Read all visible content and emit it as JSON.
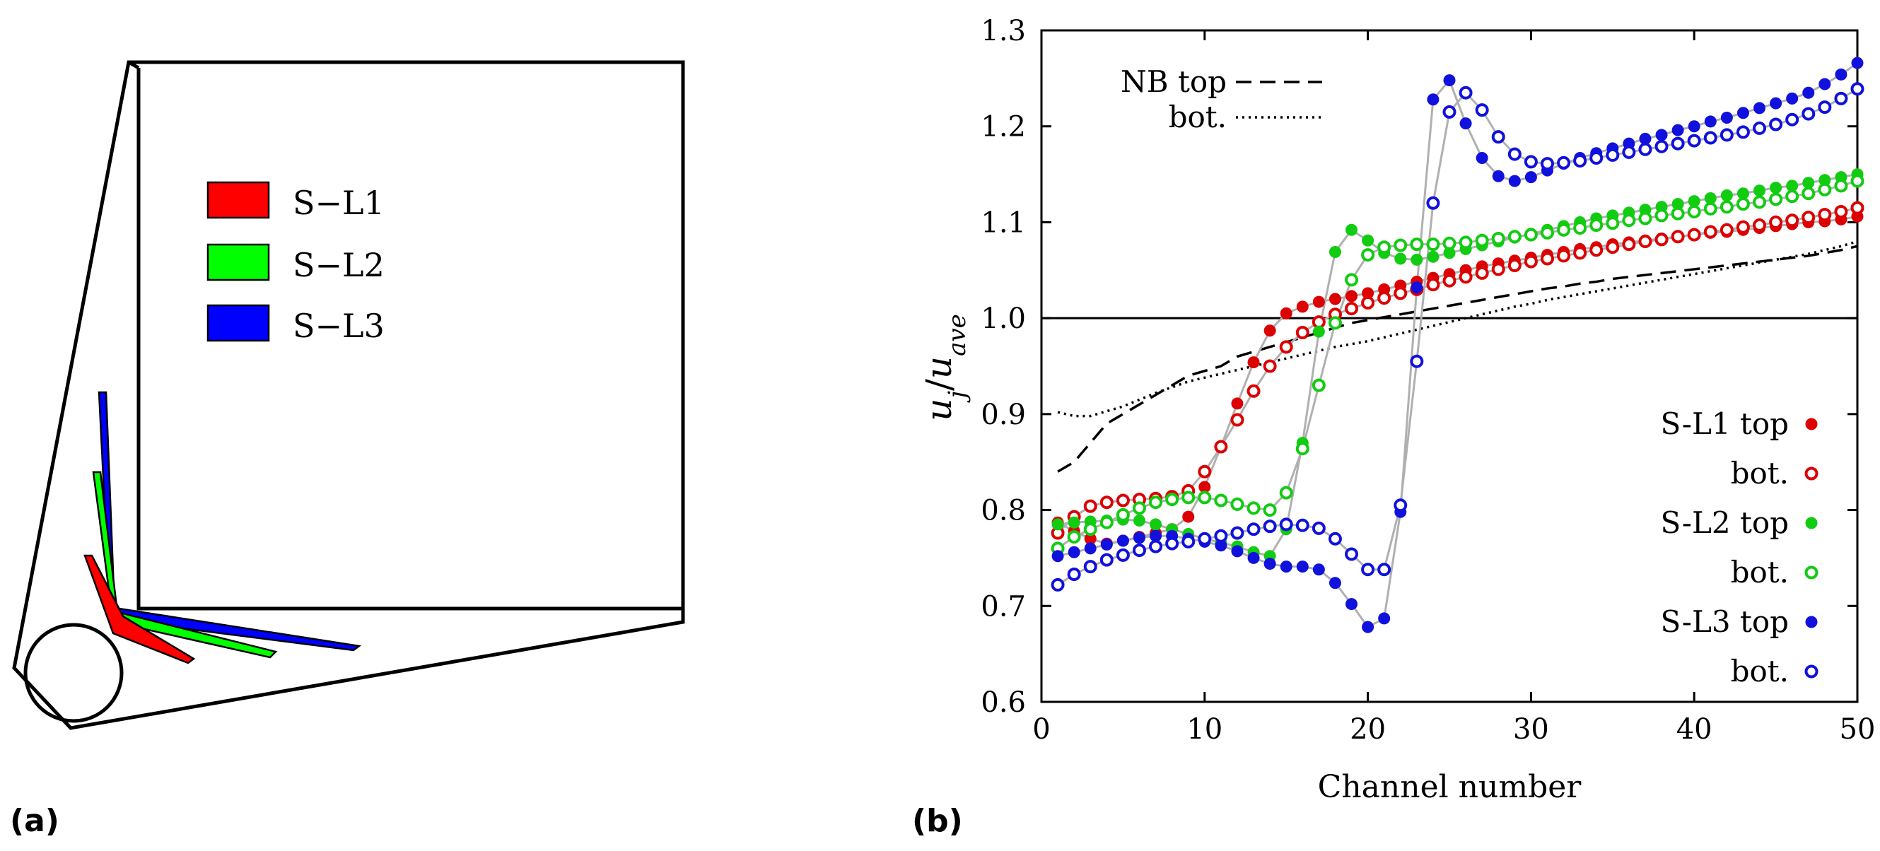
{
  "panel_a": {
    "label": "(a)",
    "legend": [
      {
        "name": "S−L1",
        "color": "#ff0000"
      },
      {
        "name": "S−L2",
        "color": "#00ff00"
      },
      {
        "name": "S−L3",
        "color": "#0000ff"
      }
    ]
  },
  "panel_b": {
    "label": "(b)"
  },
  "chart_data": {
    "type": "scatter",
    "xlabel": "Channel number",
    "ylabel": "u_j/u_ave",
    "ylabel_main": "u",
    "ylabel_sub": "j",
    "ylabel_slash": "/",
    "ylabel_main2": "u",
    "ylabel_sub2": "ave",
    "xlim": [
      0,
      50
    ],
    "ylim": [
      0.6,
      1.3
    ],
    "xticks": [
      0,
      10,
      20,
      30,
      40,
      50
    ],
    "xtick_labels": [
      "0",
      "10",
      "20",
      "30",
      "40",
      "50"
    ],
    "yticks": [
      0.6,
      0.7,
      0.8,
      0.9,
      1.0,
      1.1,
      1.2,
      1.3
    ],
    "ytick_labels": [
      "0.6",
      "0.7",
      "0.8",
      "0.9",
      "1.0",
      "1.1",
      "1.2",
      "1.3"
    ],
    "reference_line": 1.0,
    "legend_top_left": [
      {
        "label": "NB top",
        "style": "dashed"
      },
      {
        "label": "bot.",
        "style": "dotted"
      }
    ],
    "legend_bottom_right": [
      {
        "label": "S-L1 top",
        "color": "#dd0000",
        "filled": true
      },
      {
        "label": "bot.",
        "color": "#dd0000",
        "filled": false
      },
      {
        "label": "S-L2 top",
        "color": "#11cc11",
        "filled": true
      },
      {
        "label": "bot.",
        "color": "#11cc11",
        "filled": false
      },
      {
        "label": "S-L3 top",
        "color": "#1111dd",
        "filled": true
      },
      {
        "label": "bot.",
        "color": "#1111dd",
        "filled": false
      }
    ],
    "series": [
      {
        "name": "NB top",
        "style": "dashed",
        "x": [
          1,
          2,
          3,
          4,
          5,
          6,
          7,
          8,
          9,
          10,
          11,
          12,
          13,
          14,
          15,
          16,
          17,
          18,
          19,
          20,
          21,
          22,
          23,
          24,
          25,
          26,
          27,
          28,
          29,
          30,
          31,
          32,
          33,
          34,
          35,
          36,
          37,
          38,
          39,
          40,
          41,
          42,
          43,
          44,
          45,
          46,
          47,
          48,
          49,
          50
        ],
        "values": [
          0.84,
          0.85,
          0.87,
          0.89,
          0.9,
          0.91,
          0.92,
          0.93,
          0.94,
          0.945,
          0.95,
          0.96,
          0.965,
          0.97,
          0.975,
          0.98,
          0.985,
          0.99,
          0.995,
          0.998,
          1.001,
          1.004,
          1.007,
          1.01,
          1.013,
          1.016,
          1.019,
          1.022,
          1.025,
          1.028,
          1.031,
          1.033,
          1.036,
          1.038,
          1.041,
          1.043,
          1.045,
          1.047,
          1.049,
          1.051,
          1.053,
          1.055,
          1.057,
          1.059,
          1.061,
          1.063,
          1.065,
          1.068,
          1.071,
          1.075
        ]
      },
      {
        "name": "NB bot.",
        "style": "dotted",
        "x": [
          1,
          2,
          3,
          4,
          5,
          6,
          7,
          8,
          9,
          10,
          11,
          12,
          13,
          14,
          15,
          16,
          17,
          18,
          19,
          20,
          21,
          22,
          23,
          24,
          25,
          26,
          27,
          28,
          29,
          30,
          31,
          32,
          33,
          34,
          35,
          36,
          37,
          38,
          39,
          40,
          41,
          42,
          43,
          44,
          45,
          46,
          47,
          48,
          49,
          50
        ],
        "values": [
          0.902,
          0.898,
          0.898,
          0.903,
          0.908,
          0.915,
          0.922,
          0.928,
          0.934,
          0.938,
          0.942,
          0.946,
          0.95,
          0.954,
          0.958,
          0.962,
          0.966,
          0.97,
          0.973,
          0.976,
          0.98,
          0.984,
          0.988,
          0.992,
          0.996,
          1.0,
          1.004,
          1.008,
          1.012,
          1.015,
          1.019,
          1.022,
          1.025,
          1.028,
          1.031,
          1.034,
          1.037,
          1.04,
          1.043,
          1.046,
          1.049,
          1.052,
          1.055,
          1.058,
          1.061,
          1.064,
          1.067,
          1.071,
          1.075,
          1.08
        ]
      },
      {
        "name": "S-L1 top",
        "color": "#dd0000",
        "filled": true,
        "x": [
          1,
          2,
          3,
          4,
          5,
          6,
          7,
          8,
          9,
          10,
          11,
          12,
          13,
          14,
          15,
          16,
          17,
          18,
          19,
          20,
          21,
          22,
          23,
          24,
          25,
          26,
          27,
          28,
          29,
          30,
          31,
          32,
          33,
          34,
          35,
          36,
          37,
          38,
          39,
          40,
          41,
          42,
          43,
          44,
          45,
          46,
          47,
          48,
          49,
          50
        ],
        "values": [
          0.787,
          0.778,
          0.77,
          0.765,
          0.768,
          0.772,
          0.776,
          0.78,
          0.793,
          0.824,
          0.866,
          0.911,
          0.954,
          0.987,
          1.005,
          1.012,
          1.017,
          1.02,
          1.023,
          1.026,
          1.03,
          1.034,
          1.038,
          1.042,
          1.046,
          1.05,
          1.054,
          1.057,
          1.06,
          1.063,
          1.066,
          1.069,
          1.072,
          1.074,
          1.077,
          1.079,
          1.081,
          1.083,
          1.085,
          1.087,
          1.089,
          1.09,
          1.092,
          1.094,
          1.096,
          1.098,
          1.1,
          1.101,
          1.103,
          1.106
        ]
      },
      {
        "name": "S-L1 bot.",
        "color": "#dd0000",
        "filled": false,
        "x": [
          1,
          2,
          3,
          4,
          5,
          6,
          7,
          8,
          9,
          10,
          11,
          12,
          13,
          14,
          15,
          16,
          17,
          18,
          19,
          20,
          21,
          22,
          23,
          24,
          25,
          26,
          27,
          28,
          29,
          30,
          31,
          32,
          33,
          34,
          35,
          36,
          37,
          38,
          39,
          40,
          41,
          42,
          43,
          44,
          45,
          46,
          47,
          48,
          49,
          50
        ],
        "values": [
          0.776,
          0.793,
          0.804,
          0.808,
          0.81,
          0.811,
          0.812,
          0.814,
          0.82,
          0.84,
          0.866,
          0.894,
          0.924,
          0.95,
          0.97,
          0.985,
          0.996,
          1.004,
          1.01,
          1.016,
          1.021,
          1.026,
          1.03,
          1.035,
          1.039,
          1.043,
          1.047,
          1.051,
          1.055,
          1.059,
          1.062,
          1.065,
          1.068,
          1.071,
          1.074,
          1.077,
          1.08,
          1.082,
          1.085,
          1.087,
          1.09,
          1.092,
          1.095,
          1.097,
          1.1,
          1.102,
          1.105,
          1.108,
          1.111,
          1.115
        ]
      },
      {
        "name": "S-L2 top",
        "color": "#11cc11",
        "filled": true,
        "x": [
          1,
          2,
          3,
          4,
          5,
          6,
          7,
          8,
          9,
          10,
          11,
          12,
          13,
          14,
          15,
          16,
          17,
          18,
          19,
          20,
          21,
          22,
          23,
          24,
          25,
          26,
          27,
          28,
          29,
          30,
          31,
          32,
          33,
          34,
          35,
          36,
          37,
          38,
          39,
          40,
          41,
          42,
          43,
          44,
          45,
          46,
          47,
          48,
          49,
          50
        ],
        "values": [
          0.785,
          0.787,
          0.788,
          0.789,
          0.79,
          0.789,
          0.785,
          0.78,
          0.775,
          0.77,
          0.766,
          0.762,
          0.756,
          0.752,
          0.78,
          0.87,
          0.986,
          1.069,
          1.092,
          1.081,
          1.068,
          1.062,
          1.061,
          1.064,
          1.068,
          1.072,
          1.076,
          1.08,
          1.084,
          1.088,
          1.092,
          1.096,
          1.1,
          1.104,
          1.107,
          1.11,
          1.113,
          1.116,
          1.119,
          1.122,
          1.125,
          1.128,
          1.13,
          1.133,
          1.136,
          1.138,
          1.141,
          1.144,
          1.147,
          1.15
        ]
      },
      {
        "name": "S-L2 bot.",
        "color": "#11cc11",
        "filled": false,
        "x": [
          1,
          2,
          3,
          4,
          5,
          6,
          7,
          8,
          9,
          10,
          11,
          12,
          13,
          14,
          15,
          16,
          17,
          18,
          19,
          20,
          21,
          22,
          23,
          24,
          25,
          26,
          27,
          28,
          29,
          30,
          31,
          32,
          33,
          34,
          35,
          36,
          37,
          38,
          39,
          40,
          41,
          42,
          43,
          44,
          45,
          46,
          47,
          48,
          49,
          50
        ],
        "values": [
          0.76,
          0.772,
          0.78,
          0.787,
          0.795,
          0.802,
          0.808,
          0.811,
          0.813,
          0.813,
          0.81,
          0.806,
          0.802,
          0.8,
          0.818,
          0.864,
          0.93,
          0.995,
          1.04,
          1.066,
          1.074,
          1.076,
          1.077,
          1.077,
          1.078,
          1.079,
          1.081,
          1.083,
          1.085,
          1.087,
          1.089,
          1.092,
          1.094,
          1.097,
          1.099,
          1.102,
          1.104,
          1.107,
          1.109,
          1.111,
          1.114,
          1.116,
          1.119,
          1.121,
          1.124,
          1.127,
          1.13,
          1.134,
          1.138,
          1.143
        ]
      },
      {
        "name": "S-L3 top",
        "color": "#1111dd",
        "filled": true,
        "x": [
          1,
          2,
          3,
          4,
          5,
          6,
          7,
          8,
          9,
          10,
          11,
          12,
          13,
          14,
          15,
          16,
          17,
          18,
          19,
          20,
          21,
          22,
          23,
          24,
          25,
          26,
          27,
          28,
          29,
          30,
          31,
          32,
          33,
          34,
          35,
          36,
          37,
          38,
          39,
          40,
          41,
          42,
          43,
          44,
          45,
          46,
          47,
          48,
          49,
          50
        ],
        "values": [
          0.752,
          0.756,
          0.76,
          0.764,
          0.768,
          0.771,
          0.773,
          0.773,
          0.77,
          0.767,
          0.763,
          0.757,
          0.75,
          0.744,
          0.741,
          0.741,
          0.738,
          0.724,
          0.702,
          0.678,
          0.687,
          0.798,
          1.032,
          1.228,
          1.248,
          1.203,
          1.167,
          1.148,
          1.143,
          1.147,
          1.154,
          1.161,
          1.167,
          1.172,
          1.177,
          1.182,
          1.187,
          1.191,
          1.196,
          1.2,
          1.205,
          1.209,
          1.214,
          1.219,
          1.224,
          1.229,
          1.235,
          1.244,
          1.254,
          1.266
        ]
      },
      {
        "name": "S-L3 bot.",
        "color": "#1111dd",
        "filled": false,
        "x": [
          1,
          2,
          3,
          4,
          5,
          6,
          7,
          8,
          9,
          10,
          11,
          12,
          13,
          14,
          15,
          16,
          17,
          18,
          19,
          20,
          21,
          22,
          23,
          24,
          25,
          26,
          27,
          28,
          29,
          30,
          31,
          32,
          33,
          34,
          35,
          36,
          37,
          38,
          39,
          40,
          41,
          42,
          43,
          44,
          45,
          46,
          47,
          48,
          49,
          50
        ],
        "values": [
          0.722,
          0.733,
          0.741,
          0.748,
          0.753,
          0.758,
          0.762,
          0.765,
          0.767,
          0.77,
          0.773,
          0.776,
          0.78,
          0.783,
          0.785,
          0.784,
          0.781,
          0.77,
          0.754,
          0.738,
          0.738,
          0.805,
          0.955,
          1.12,
          1.215,
          1.235,
          1.217,
          1.189,
          1.171,
          1.163,
          1.161,
          1.162,
          1.164,
          1.167,
          1.17,
          1.173,
          1.176,
          1.179,
          1.182,
          1.185,
          1.188,
          1.191,
          1.194,
          1.198,
          1.202,
          1.207,
          1.213,
          1.22,
          1.229,
          1.239
        ]
      }
    ]
  }
}
